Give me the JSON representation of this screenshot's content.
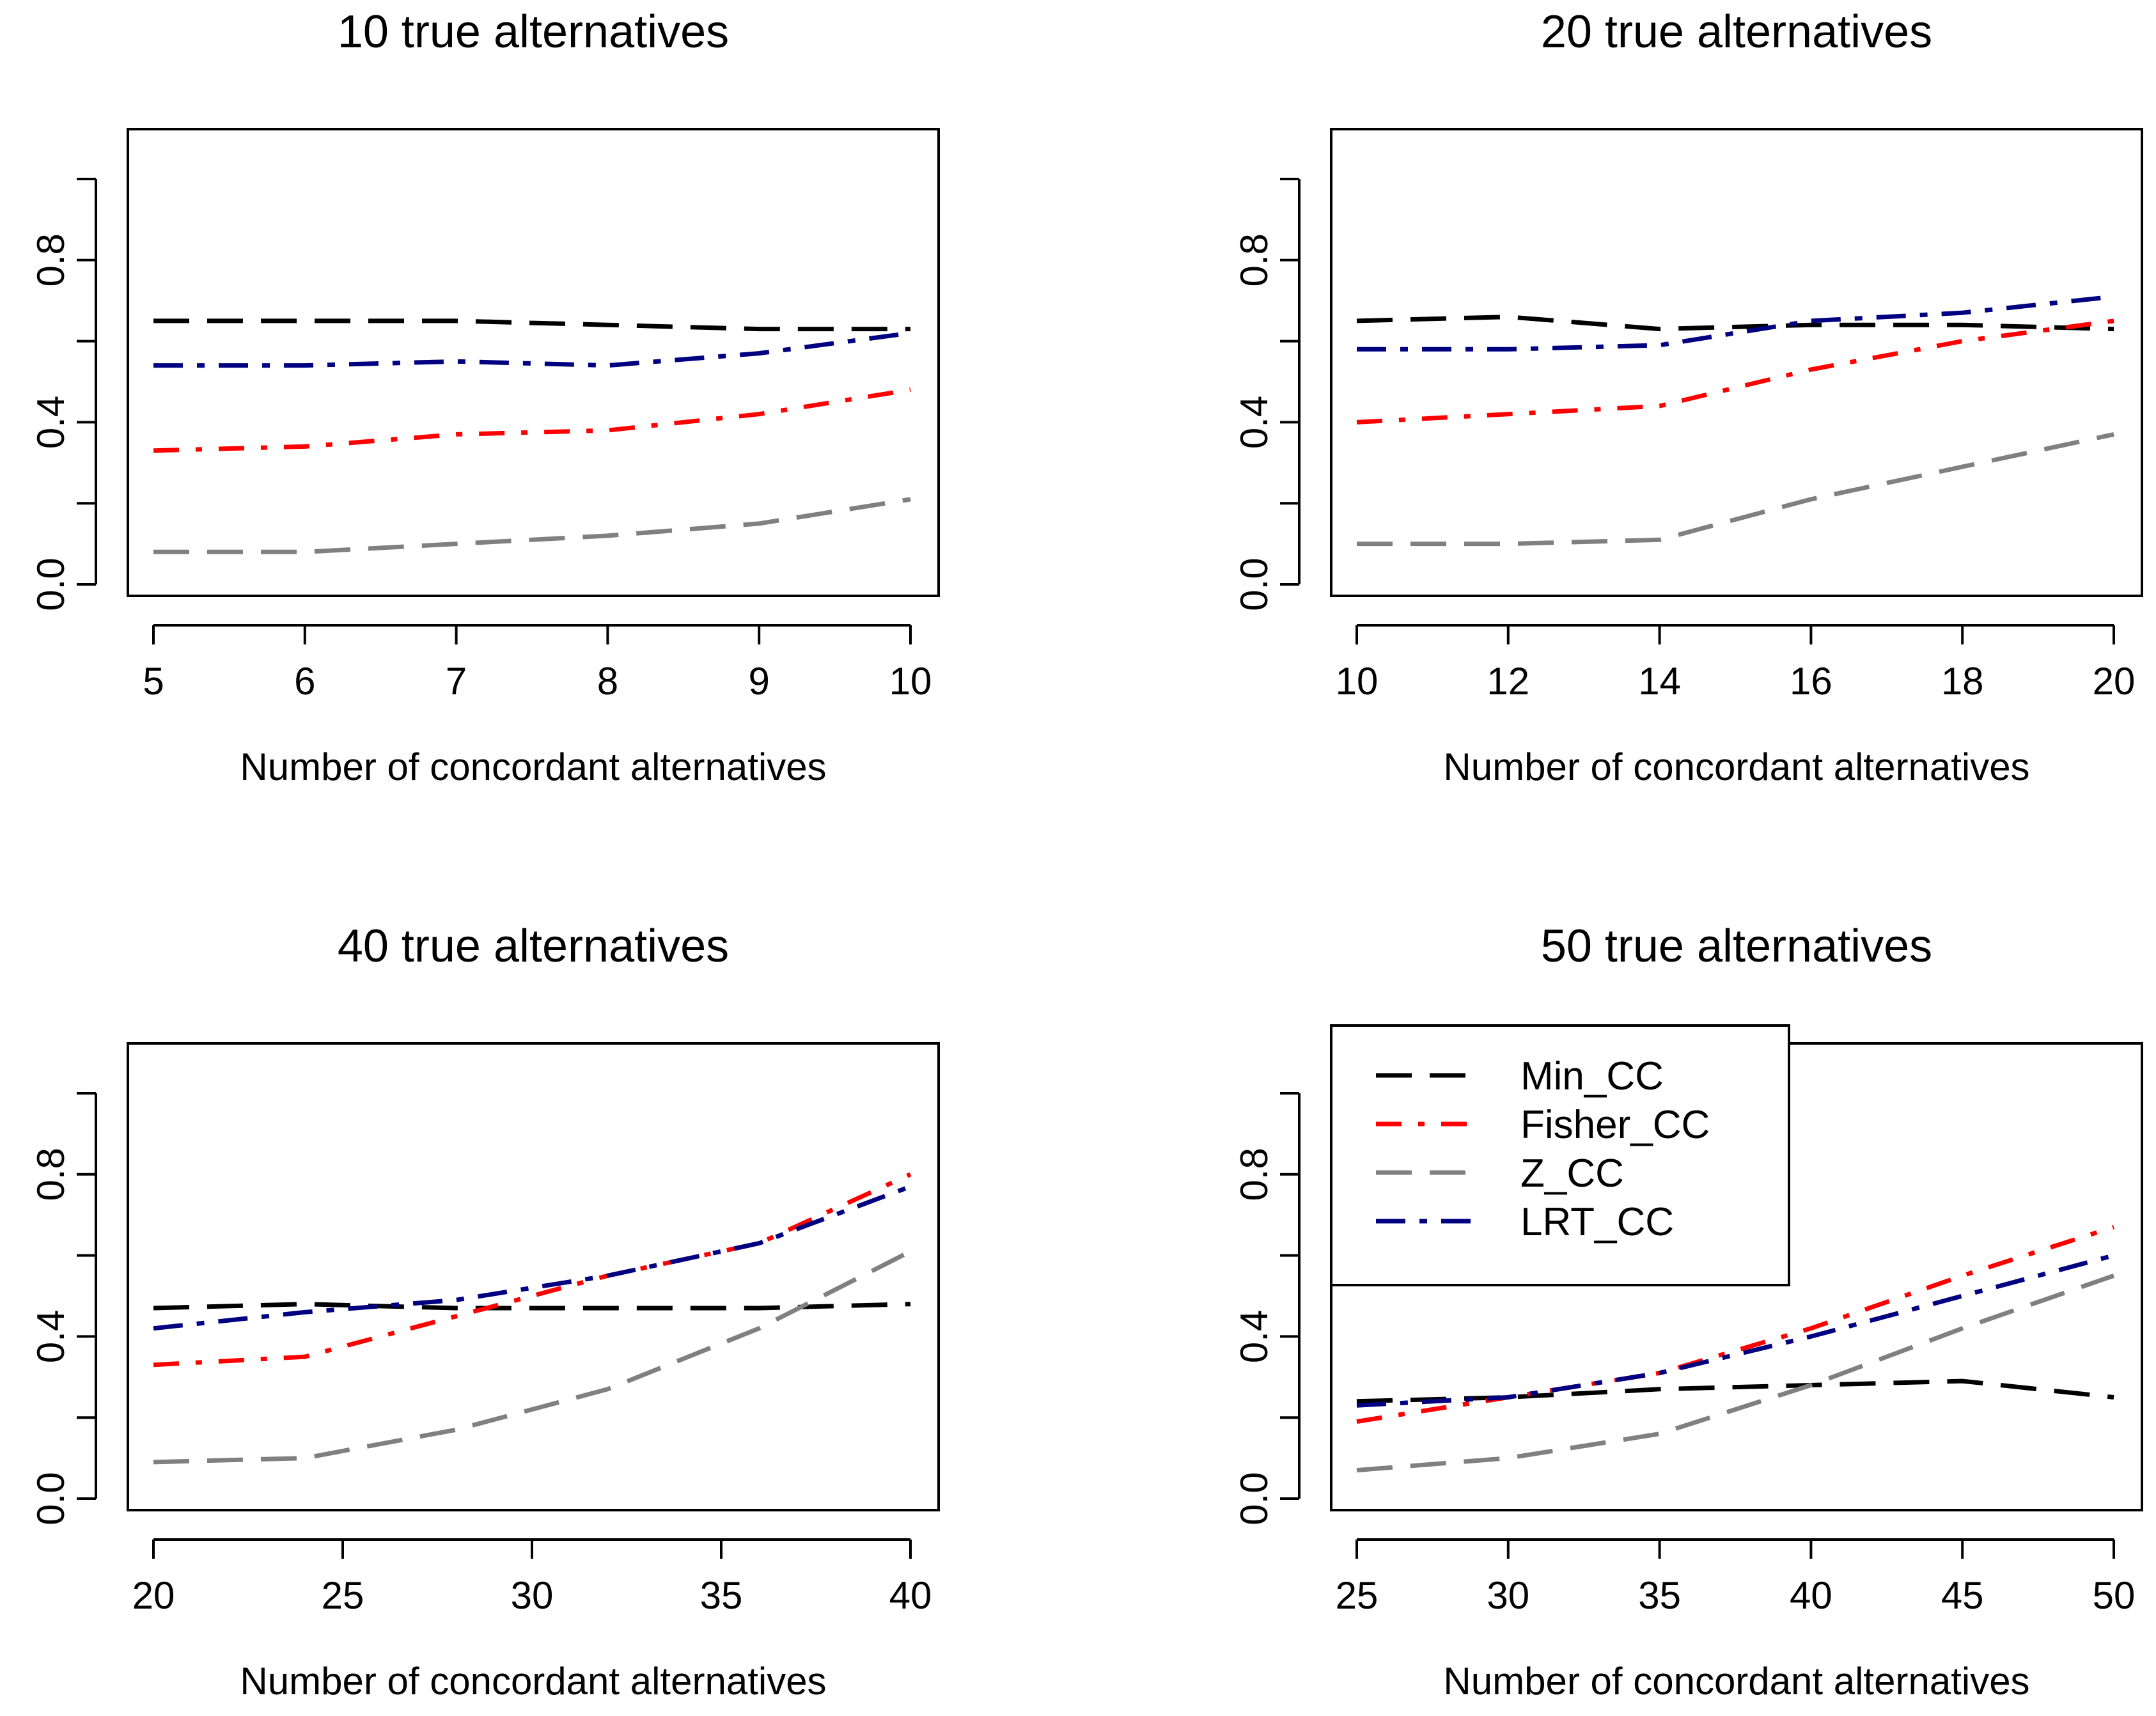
{
  "chart_data": [
    {
      "type": "line",
      "title": "10 true alternatives",
      "xlabel": "Number of concordant alternatives",
      "ylabel": "",
      "x": [
        5,
        6,
        7,
        8,
        9,
        10
      ],
      "xticks": [
        5,
        6,
        7,
        8,
        9,
        10
      ],
      "xlim": [
        5,
        10
      ],
      "ylim": [
        0,
        1
      ],
      "yticks": [
        0.0,
        0.2,
        0.4,
        0.6,
        0.8,
        1.0
      ],
      "ytick_labels": [
        "0.0",
        "",
        "0.4",
        "",
        "0.8",
        ""
      ],
      "legend": false,
      "series": [
        {
          "name": "Min_CC",
          "values": [
            0.65,
            0.65,
            0.65,
            0.64,
            0.63,
            0.63
          ]
        },
        {
          "name": "Fisher_CC",
          "values": [
            0.33,
            0.34,
            0.37,
            0.38,
            0.42,
            0.48
          ]
        },
        {
          "name": "Z_CC",
          "values": [
            0.08,
            0.08,
            0.1,
            0.12,
            0.15,
            0.21
          ]
        },
        {
          "name": "LRT_CC",
          "values": [
            0.54,
            0.54,
            0.55,
            0.54,
            0.57,
            0.62
          ]
        }
      ]
    },
    {
      "type": "line",
      "title": "20 true alternatives",
      "xlabel": "Number of concordant alternatives",
      "ylabel": "",
      "x": [
        10,
        12,
        14,
        16,
        18,
        20
      ],
      "xticks": [
        10,
        12,
        14,
        16,
        18,
        20
      ],
      "xlim": [
        10,
        20
      ],
      "ylim": [
        0,
        1
      ],
      "yticks": [
        0.0,
        0.2,
        0.4,
        0.6,
        0.8,
        1.0
      ],
      "ytick_labels": [
        "0.0",
        "",
        "0.4",
        "",
        "0.8",
        ""
      ],
      "legend": false,
      "series": [
        {
          "name": "Min_CC",
          "values": [
            0.65,
            0.66,
            0.63,
            0.64,
            0.64,
            0.63
          ]
        },
        {
          "name": "Fisher_CC",
          "values": [
            0.4,
            0.42,
            0.44,
            0.53,
            0.6,
            0.65
          ]
        },
        {
          "name": "Z_CC",
          "values": [
            0.1,
            0.1,
            0.11,
            0.21,
            0.29,
            0.37
          ]
        },
        {
          "name": "LRT_CC",
          "values": [
            0.58,
            0.58,
            0.59,
            0.65,
            0.67,
            0.71
          ]
        }
      ]
    },
    {
      "type": "line",
      "title": "40 true alternatives",
      "xlabel": "Number of concordant alternatives",
      "ylabel": "",
      "x": [
        20,
        24,
        28,
        32,
        36,
        40
      ],
      "xticks": [
        20,
        25,
        30,
        35,
        40
      ],
      "xlim": [
        20,
        40
      ],
      "ylim": [
        0,
        1
      ],
      "yticks": [
        0.0,
        0.2,
        0.4,
        0.6,
        0.8,
        1.0
      ],
      "ytick_labels": [
        "0.0",
        "",
        "0.4",
        "",
        "0.8",
        ""
      ],
      "legend": false,
      "series": [
        {
          "name": "Min_CC",
          "values": [
            0.47,
            0.48,
            0.47,
            0.47,
            0.47,
            0.48
          ]
        },
        {
          "name": "Fisher_CC",
          "values": [
            0.33,
            0.35,
            0.45,
            0.55,
            0.63,
            0.8
          ]
        },
        {
          "name": "Z_CC",
          "values": [
            0.09,
            0.1,
            0.17,
            0.27,
            0.42,
            0.61
          ]
        },
        {
          "name": "LRT_CC",
          "values": [
            0.42,
            0.46,
            0.49,
            0.55,
            0.63,
            0.77
          ]
        }
      ]
    },
    {
      "type": "line",
      "title": "50 true alternatives",
      "xlabel": "Number of concordant alternatives",
      "ylabel": "",
      "x": [
        25,
        30,
        35,
        40,
        45,
        50
      ],
      "xticks": [
        25,
        30,
        35,
        40,
        45,
        50
      ],
      "xlim": [
        25,
        50
      ],
      "ylim": [
        0,
        1
      ],
      "yticks": [
        0.0,
        0.2,
        0.4,
        0.6,
        0.8,
        1.0
      ],
      "ytick_labels": [
        "0.0",
        "",
        "0.4",
        "",
        "0.8",
        ""
      ],
      "legend": true,
      "legend_position": "top-left",
      "series": [
        {
          "name": "Min_CC",
          "values": [
            0.24,
            0.25,
            0.27,
            0.28,
            0.29,
            0.25
          ]
        },
        {
          "name": "Fisher_CC",
          "values": [
            0.19,
            0.25,
            0.31,
            0.42,
            0.55,
            0.67
          ]
        },
        {
          "name": "Z_CC",
          "values": [
            0.07,
            0.1,
            0.16,
            0.28,
            0.42,
            0.55
          ]
        },
        {
          "name": "LRT_CC",
          "values": [
            0.23,
            0.25,
            0.31,
            0.4,
            0.5,
            0.6
          ]
        }
      ]
    }
  ],
  "series_styles": [
    {
      "name": "Min_CC",
      "color": "#000000",
      "dash": "long-dash"
    },
    {
      "name": "Fisher_CC",
      "color": "#ff0000",
      "dash": "dot-dash"
    },
    {
      "name": "Z_CC",
      "color": "#808080",
      "dash": "long-dash"
    },
    {
      "name": "LRT_CC",
      "color": "#000080",
      "dash": "dash-dot"
    }
  ]
}
